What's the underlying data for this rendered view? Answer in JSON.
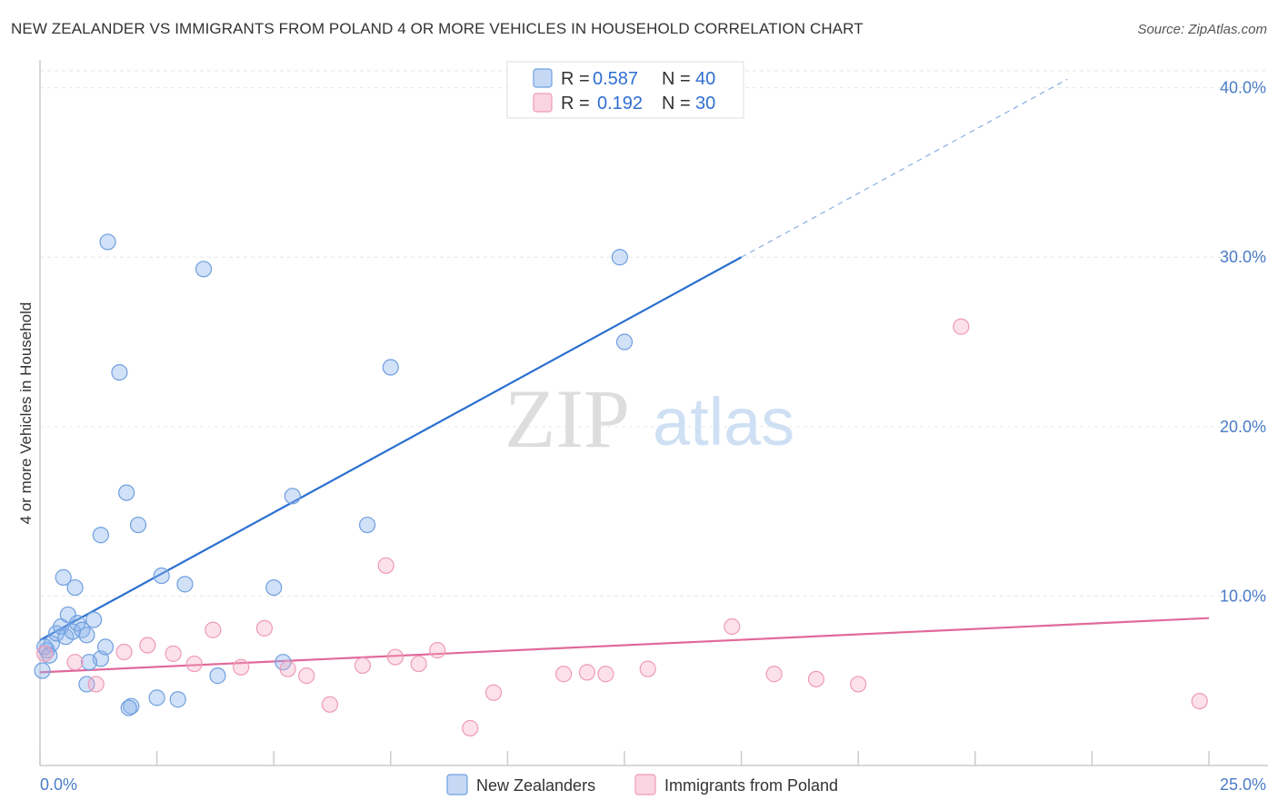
{
  "title": "NEW ZEALANDER VS IMMIGRANTS FROM POLAND 4 OR MORE VEHICLES IN HOUSEHOLD CORRELATION CHART",
  "source": "Source: ZipAtlas.com",
  "watermark": {
    "zip": "ZIP",
    "atlas": "atlas"
  },
  "chart_data": {
    "type": "scatter",
    "ylabel": "4 or more Vehicles in Household",
    "xlim": [
      0,
      25
    ],
    "ylim": [
      0,
      41
    ],
    "x_tick_labels": [
      {
        "value": 0,
        "label": "0.0%"
      },
      {
        "value": 25,
        "label": "25.0%"
      }
    ],
    "y_tick_labels": [
      {
        "value": 10,
        "label": "10.0%"
      },
      {
        "value": 20,
        "label": "20.0%"
      },
      {
        "value": 30,
        "label": "30.0%"
      },
      {
        "value": 40,
        "label": "40.0%"
      }
    ],
    "grid": true,
    "legend_position": "top-center",
    "legend_stats": [
      {
        "r_label": "R =",
        "r_value": "0.587",
        "n_label": "N =",
        "n_value": "40",
        "color": "#6fa0e8"
      },
      {
        "r_label": "R =",
        "r_value": "0.192",
        "n_label": "N =",
        "n_value": "30",
        "color": "#f08cb0"
      }
    ],
    "series": [
      {
        "name": "New Zealanders",
        "color": "#7aa8e8",
        "line_color": "#2a6fcf",
        "trend": {
          "x0": 0,
          "y0": 7.4,
          "x1": 15,
          "y1": 30.0,
          "dash_to_x": 25
        },
        "points": [
          [
            0.05,
            5.6
          ],
          [
            0.15,
            6.8
          ],
          [
            0.25,
            7.2
          ],
          [
            0.35,
            7.8
          ],
          [
            0.45,
            8.2
          ],
          [
            0.55,
            7.6
          ],
          [
            0.6,
            8.9
          ],
          [
            0.7,
            7.9
          ],
          [
            0.8,
            8.4
          ],
          [
            0.9,
            8.0
          ],
          [
            1.0,
            7.7
          ],
          [
            1.15,
            8.6
          ],
          [
            1.3,
            6.3
          ],
          [
            1.4,
            7.0
          ],
          [
            1.0,
            4.8
          ],
          [
            1.05,
            6.1
          ],
          [
            0.5,
            11.1
          ],
          [
            0.75,
            10.5
          ],
          [
            1.3,
            13.6
          ],
          [
            1.45,
            30.9
          ],
          [
            1.7,
            23.2
          ],
          [
            1.85,
            16.1
          ],
          [
            2.1,
            14.2
          ],
          [
            2.6,
            11.2
          ],
          [
            3.1,
            10.7
          ],
          [
            3.5,
            29.3
          ],
          [
            2.5,
            4.0
          ],
          [
            2.95,
            3.9
          ],
          [
            1.95,
            3.5
          ],
          [
            1.9,
            3.4
          ],
          [
            3.8,
            5.3
          ],
          [
            5.0,
            10.5
          ],
          [
            5.2,
            6.1
          ],
          [
            5.4,
            15.9
          ],
          [
            7.0,
            14.2
          ],
          [
            7.5,
            23.5
          ],
          [
            12.4,
            30.0
          ],
          [
            12.5,
            25.0
          ],
          [
            0.1,
            7.0
          ],
          [
            0.2,
            6.5
          ]
        ]
      },
      {
        "name": "Immigrants from Poland",
        "color": "#f4a3bf",
        "line_color": "#e0699a",
        "trend": {
          "x0": 0,
          "y0": 5.5,
          "x1": 25,
          "y1": 8.7
        },
        "points": [
          [
            0.1,
            6.6
          ],
          [
            1.2,
            4.8
          ],
          [
            0.75,
            6.1
          ],
          [
            1.8,
            6.7
          ],
          [
            2.3,
            7.1
          ],
          [
            2.85,
            6.6
          ],
          [
            3.3,
            6.0
          ],
          [
            3.7,
            8.0
          ],
          [
            4.3,
            5.8
          ],
          [
            4.8,
            8.1
          ],
          [
            5.3,
            5.7
          ],
          [
            5.7,
            5.3
          ],
          [
            6.2,
            3.6
          ],
          [
            6.9,
            5.9
          ],
          [
            7.4,
            11.8
          ],
          [
            7.6,
            6.4
          ],
          [
            8.1,
            6.0
          ],
          [
            8.5,
            6.8
          ],
          [
            9.2,
            2.2
          ],
          [
            9.7,
            4.3
          ],
          [
            11.2,
            5.4
          ],
          [
            11.7,
            5.5
          ],
          [
            12.1,
            5.4
          ],
          [
            13.0,
            5.7
          ],
          [
            14.8,
            8.2
          ],
          [
            15.7,
            5.4
          ],
          [
            16.6,
            5.1
          ],
          [
            17.5,
            4.8
          ],
          [
            19.7,
            25.9
          ],
          [
            24.8,
            3.8
          ]
        ]
      }
    ]
  }
}
